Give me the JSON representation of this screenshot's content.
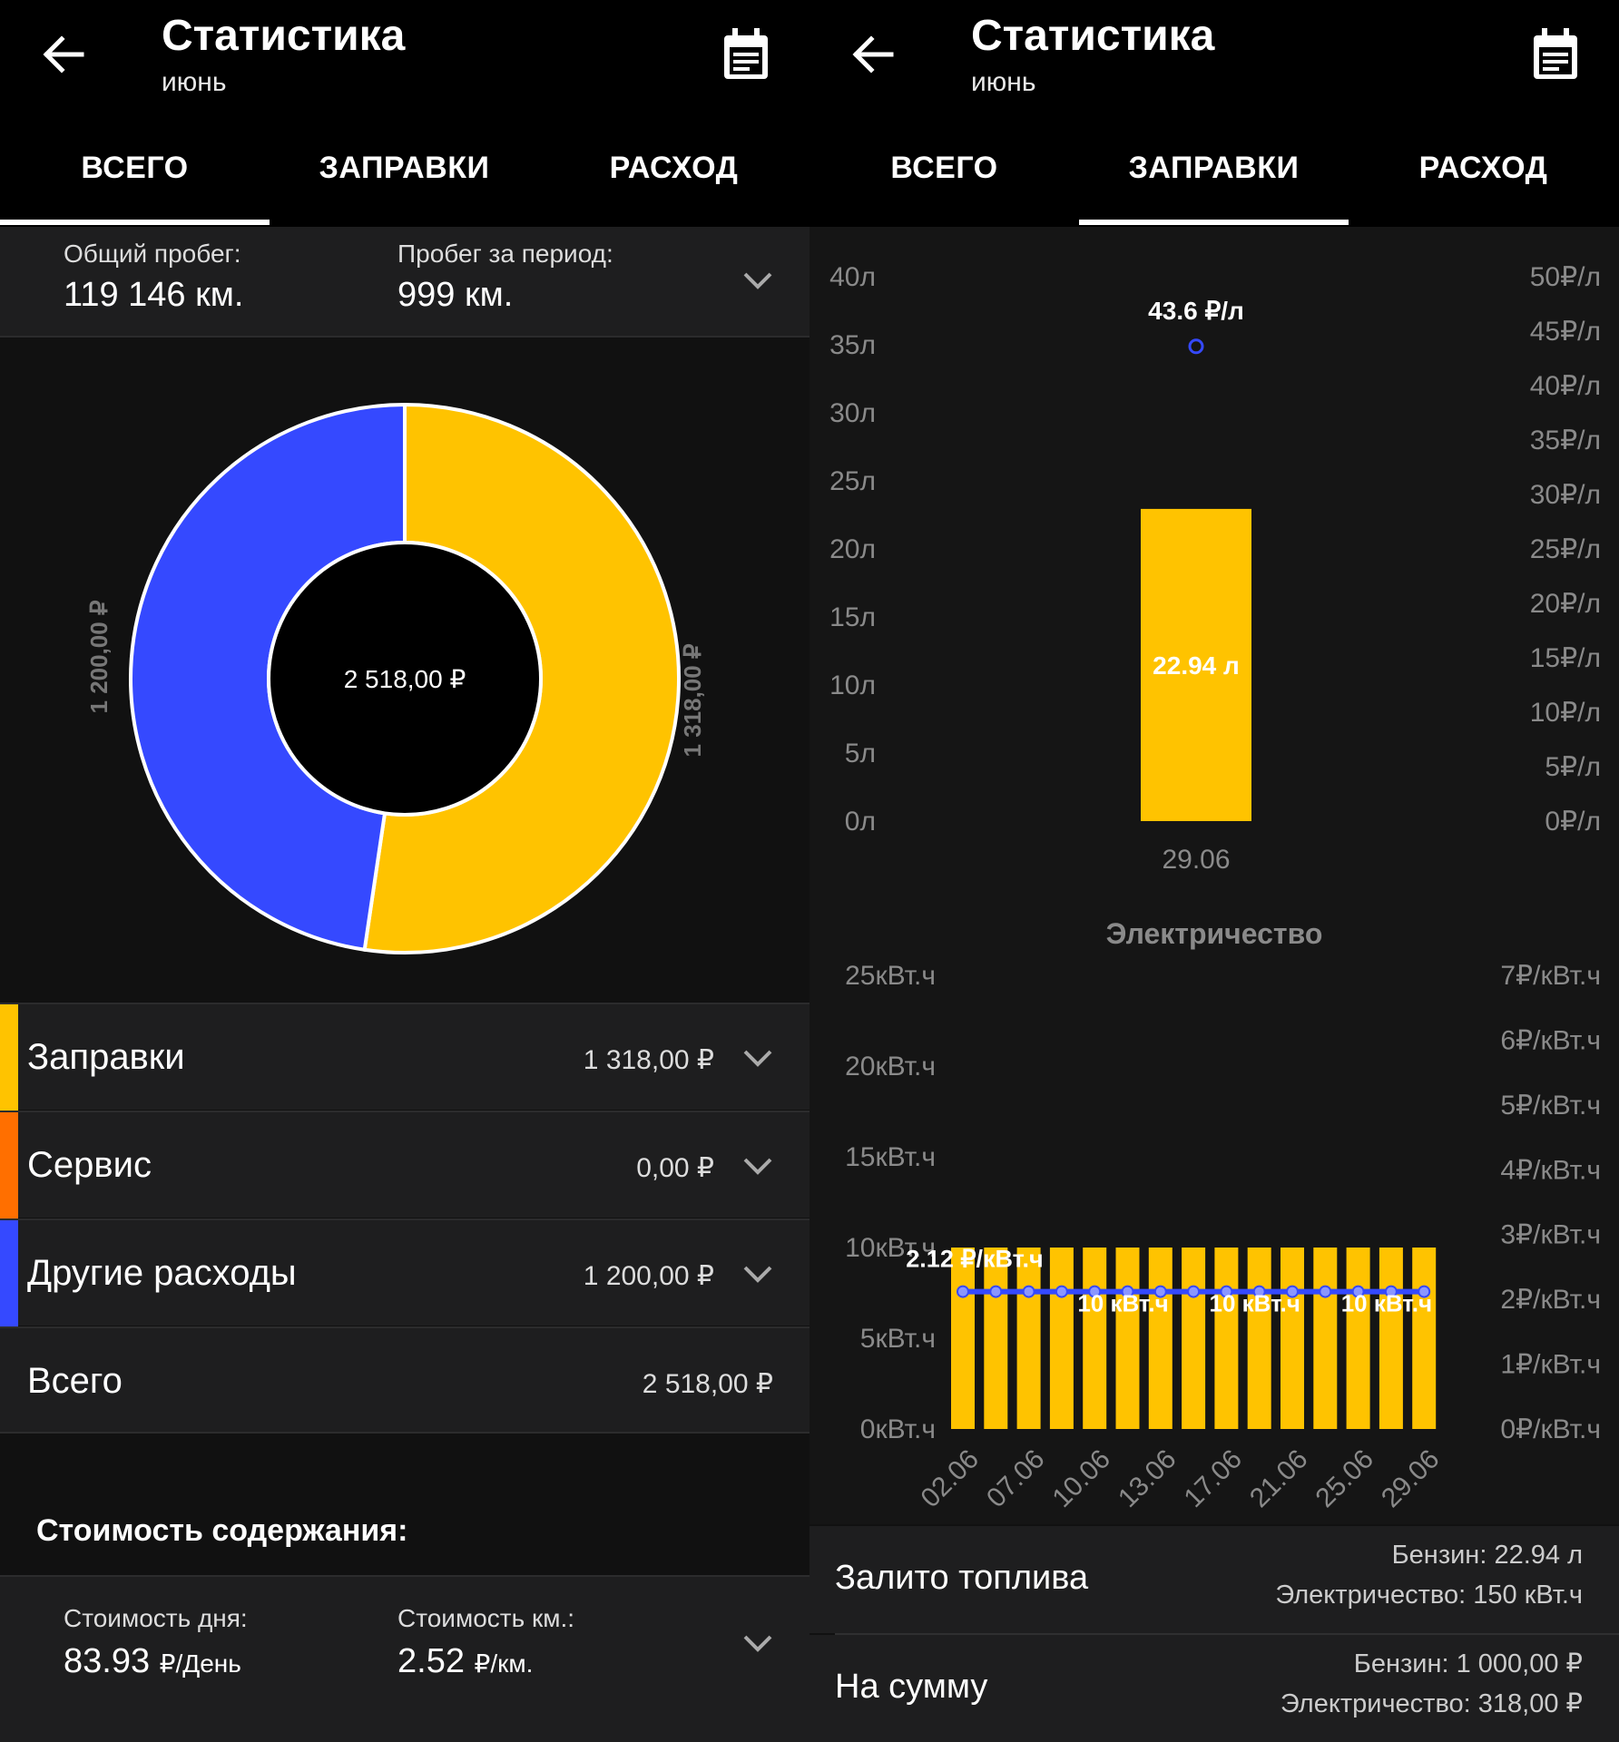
{
  "left": {
    "header": {
      "title": "Статистика",
      "subtitle": "июнь"
    },
    "tabs": [
      {
        "label": "ВСЕГО"
      },
      {
        "label": "ЗАПРАВКИ"
      },
      {
        "label": "РАСХОД"
      }
    ],
    "active_tab": 0,
    "mileage": {
      "total_label": "Общий пробег:",
      "total_value": "119 146 км.",
      "period_label": "Пробег за период:",
      "period_value": "999 км."
    },
    "donut": {
      "center_label": "2 518,00 ₽",
      "left_label": "1 200,00 ₽",
      "right_label": "1 318,00 ₽",
      "slices": [
        {
          "name": "Заправки",
          "value": 1318,
          "color": "#ffc300"
        },
        {
          "name": "Другие расходы",
          "value": 1200,
          "color": "#3549ff"
        }
      ]
    },
    "categories": [
      {
        "name": "Заправки",
        "amount": "1 318,00 ₽",
        "color": "#ffc300"
      },
      {
        "name": "Сервис",
        "amount": "0,00 ₽",
        "color": "#ff6f00"
      },
      {
        "name": "Другие расходы",
        "amount": "1 200,00 ₽",
        "color": "#3549ff"
      },
      {
        "name": "Всего",
        "amount": "2 518,00 ₽",
        "color": ""
      }
    ],
    "maintenance": {
      "title": "Стоимость содержания:",
      "day_label": "Стоимость дня:",
      "day_value": "83.93",
      "day_unit": "₽/День",
      "km_label": "Стоимость км.:",
      "km_value": "2.52",
      "km_unit": "₽/км."
    }
  },
  "right": {
    "header": {
      "title": "Статистика",
      "subtitle": "июнь"
    },
    "tabs": [
      {
        "label": "ВСЕГО"
      },
      {
        "label": "ЗАПРАВКИ"
      },
      {
        "label": "РАСХОД"
      }
    ],
    "active_tab": 1,
    "summary": {
      "fuel_label": "Залито топлива",
      "fuel_line1": "Бензин: 22.94 л",
      "fuel_line2": "Электричество: 150 кВт.ч",
      "sum_label": "На сумму",
      "sum_line1": "Бензин: 1 000,00 ₽",
      "sum_line2": "Электричество: 318,00 ₽"
    }
  },
  "colors": {
    "yellow": "#ffc300",
    "blue": "#3549ff",
    "orange": "#ff6f00"
  },
  "chart_data": [
    {
      "type": "bar",
      "title": "",
      "categories": [
        "29.06"
      ],
      "series": [
        {
          "name": "",
          "values": [
            22.94
          ],
          "axis": "left"
        },
        {
          "name": "",
          "values": [
            43.6
          ],
          "axis": "right",
          "render": "point"
        }
      ],
      "bar_label": "22.94 л",
      "point_label": "43.6 ₽/л",
      "ylim_left": [
        0,
        40
      ],
      "ylim_right": [
        0,
        50
      ],
      "yticks_left": [
        "0л",
        "5л",
        "10л",
        "15л",
        "20л",
        "25л",
        "30л",
        "35л",
        "40л"
      ],
      "yticks_right": [
        "0₽/л",
        "5₽/л",
        "10₽/л",
        "15₽/л",
        "20₽/л",
        "25₽/л",
        "30₽/л",
        "35₽/л",
        "40₽/л",
        "45₽/л",
        "50₽/л"
      ]
    },
    {
      "type": "bar",
      "title": "Электричество",
      "categories": [
        "02.06",
        "07.06",
        "10.06",
        "13.06",
        "17.06",
        "21.06",
        "25.06",
        "29.06"
      ],
      "bar_count": 15,
      "bar_values": [
        10,
        10,
        10,
        10,
        10,
        10,
        10,
        10,
        10,
        10,
        10,
        10,
        10,
        10,
        10
      ],
      "line_values": [
        2.12,
        2.12,
        2.12,
        2.12,
        2.12,
        2.12,
        2.12,
        2.12,
        2.12,
        2.12,
        2.12,
        2.12,
        2.12,
        2.12,
        2.12
      ],
      "ylim_left": [
        0,
        25
      ],
      "ylim_right": [
        0,
        7
      ],
      "yticks_left": [
        "0кВт.ч",
        "5кВт.ч",
        "10кВт.ч",
        "15кВт.ч",
        "20кВт.ч",
        "25кВт.ч"
      ],
      "yticks_right": [
        "0₽/кВт.ч",
        "1₽/кВт.ч",
        "2₽/кВт.ч",
        "3₽/кВт.ч",
        "4₽/кВт.ч",
        "5₽/кВт.ч",
        "6₽/кВт.ч",
        "7₽/кВт.ч"
      ],
      "line_label": "2.12 ₽/кВт.ч",
      "bar_labels": [
        "10 кВт.ч",
        "10 кВт.ч",
        "10 кВт.ч"
      ]
    }
  ]
}
